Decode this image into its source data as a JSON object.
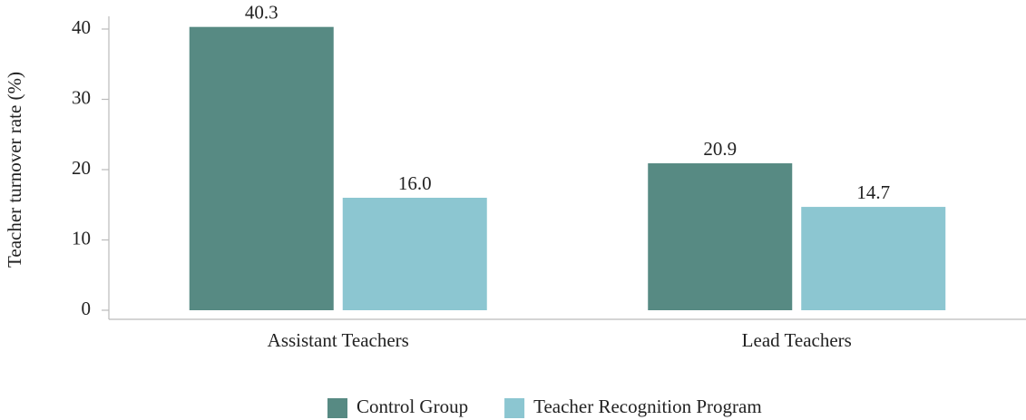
{
  "chart_data": {
    "type": "bar",
    "y_label": "Teacher turnover rate (%)",
    "categories": [
      "Assistant Teachers",
      "Lead Teachers"
    ],
    "series": [
      {
        "name": "Control Group",
        "color": "#578a83",
        "values": [
          40.3,
          20.9
        ],
        "value_labels": [
          "40.3",
          "20.9"
        ]
      },
      {
        "name": "Teacher Recognition Program",
        "color": "#8cc6d1",
        "values": [
          16.0,
          14.7
        ],
        "value_labels": [
          "16.0",
          "14.7"
        ]
      }
    ],
    "ylim": [
      0,
      40
    ],
    "yticks": [
      0,
      10,
      20,
      30,
      40
    ],
    "grid": false,
    "legend": "bottom"
  }
}
